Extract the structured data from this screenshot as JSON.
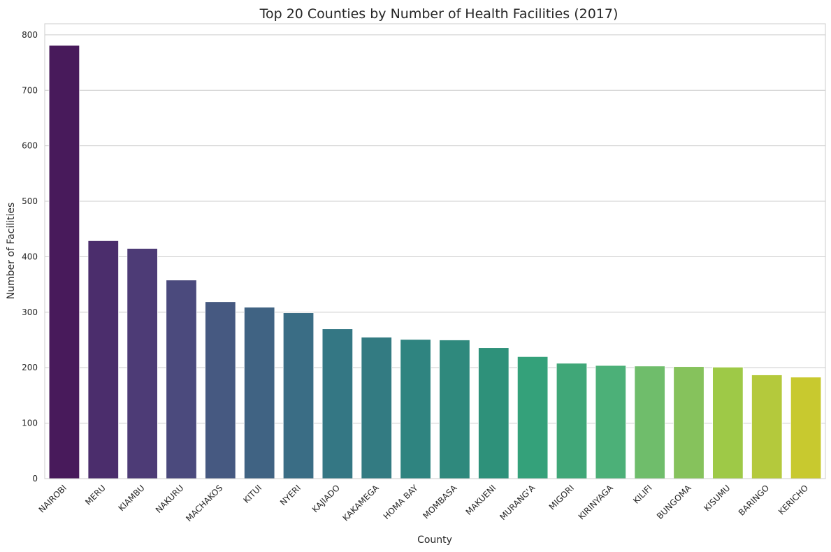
{
  "chart_data": {
    "type": "bar",
    "title": "Top 20 Counties by Number of Health Facilities (2017)",
    "xlabel": "County",
    "ylabel": "Number of Facilities",
    "categories": [
      "NAIROBI",
      "MERU",
      "KIAMBU",
      "NAKURU",
      "MACHAKOS",
      "KITUI",
      "NYERI",
      "KAJIADO",
      "KAKAMEGA",
      "HOMA BAY",
      "MOMBASA",
      "MAKUENI",
      "MURANG'A",
      "MIGORI",
      "KIRINYAGA",
      "KILIFI",
      "BUNGOMA",
      "KISUMU",
      "BARINGO",
      "KERICHO"
    ],
    "values": [
      781,
      429,
      415,
      358,
      319,
      309,
      299,
      270,
      255,
      251,
      250,
      236,
      220,
      208,
      204,
      203,
      202,
      201,
      187,
      183
    ],
    "colors": [
      "#481a5b",
      "#4b2d6c",
      "#4d3b76",
      "#4b4a7d",
      "#465981",
      "#406383",
      "#3a6d85",
      "#347784",
      "#337b82",
      "#2f8480",
      "#2f897d",
      "#2e917a",
      "#34a17a",
      "#40a778",
      "#4cb078",
      "#6fbd6b",
      "#86c25c",
      "#9ec947",
      "#b4c93c",
      "#c8c92f"
    ],
    "yticks": [
      0,
      100,
      200,
      300,
      400,
      500,
      600,
      700,
      800
    ],
    "ylim": [
      0,
      820
    ],
    "grid": "horizontal",
    "legend": "none"
  }
}
